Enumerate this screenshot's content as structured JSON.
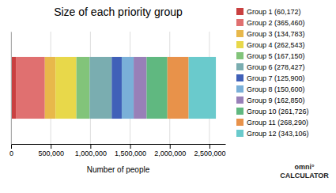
{
  "chart_data": {
    "type": "bar",
    "title": "Size of each priority group",
    "xlabel": "Number of people",
    "orientation": "horizontal",
    "stacked": true,
    "categories": [
      null
    ],
    "series": [
      {
        "name": "Group 1 (60,172)",
        "color": "#c94040",
        "values": [
          60172
        ]
      },
      {
        "name": "Group 2 (365,460)",
        "color": "#e07070",
        "values": [
          365460
        ]
      },
      {
        "name": "Group 3 (134,783)",
        "color": "#e8b84b",
        "values": [
          134783
        ]
      },
      {
        "name": "Group 4 (262,543)",
        "color": "#e8d84a",
        "values": [
          262543
        ]
      },
      {
        "name": "Group 5 (167,150)",
        "color": "#82c47a",
        "values": [
          167150
        ]
      },
      {
        "name": "Group 6 (278,427)",
        "color": "#7aadb0",
        "values": [
          278427
        ]
      },
      {
        "name": "Group 7 (125,900)",
        "color": "#4060b8",
        "values": [
          125900
        ]
      },
      {
        "name": "Group 8 (150,600)",
        "color": "#7ab0d8",
        "values": [
          150600
        ]
      },
      {
        "name": "Group 9 (162,850)",
        "color": "#9880b8",
        "values": [
          162850
        ]
      },
      {
        "name": "Group 10 (261,726)",
        "color": "#60b880",
        "values": [
          261726
        ]
      },
      {
        "name": "Group 11 (268,290)",
        "color": "#e8924a",
        "values": [
          268290
        ]
      },
      {
        "name": "Group 12 (343,106)",
        "color": "#6acacc",
        "values": [
          343106
        ]
      }
    ],
    "xlim": [
      0,
      2700000
    ],
    "xticks": [
      0,
      {
        "value": 500000,
        "label": "500,000"
      },
      {
        "value": 1000000,
        "label": "1,000,000"
      },
      {
        "value": 1500000,
        "label": "1,500,000"
      },
      {
        "value": 2000000,
        "label": "2,000,000"
      },
      {
        "value": 2500000,
        "label": "2,500,000"
      }
    ],
    "grid": true,
    "legend": "right",
    "tick_labels": "x",
    "annotations": [
      "omni°\nCALCULATOR"
    ]
  }
}
